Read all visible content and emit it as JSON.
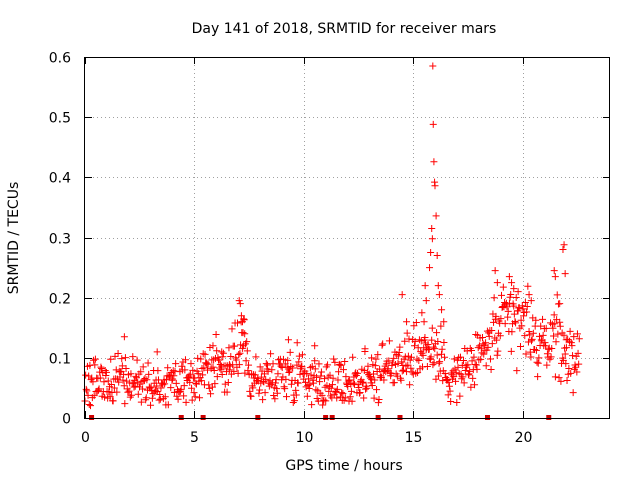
{
  "chart_data": {
    "type": "scatter",
    "title": "Day 141 of 2018, SRMTID for receiver mars",
    "xlabel": "GPS time / hours",
    "ylabel": "SRMTID / TECUs",
    "xlim": [
      0,
      24
    ],
    "ylim": [
      0,
      0.6
    ],
    "x_ticks": [
      0,
      5,
      10,
      15,
      20
    ],
    "y_ticks": [
      0,
      0.1,
      0.2,
      0.3,
      0.4,
      0.5,
      0.6
    ],
    "x_tick_labels": [
      "0",
      "5",
      "10",
      "15",
      "20"
    ],
    "y_tick_labels": [
      "0",
      "0.1",
      "0.2",
      "0.3",
      "0.4",
      "0.5",
      "0.6"
    ],
    "grid": true,
    "marker": "+",
    "series_color": "#ff0000",
    "gap_marker_color": "#cc0000",
    "data_gaps_x": [
      0.3,
      4.4,
      5.4,
      7.9,
      11.0,
      11.3,
      13.4,
      14.4,
      18.4,
      21.2
    ],
    "trend": [
      [
        0.0,
        0.06
      ],
      [
        1.0,
        0.055
      ],
      [
        2.0,
        0.065
      ],
      [
        3.0,
        0.05
      ],
      [
        4.0,
        0.05
      ],
      [
        5.0,
        0.06
      ],
      [
        6.0,
        0.085
      ],
      [
        6.5,
        0.08
      ],
      [
        7.0,
        0.11
      ],
      [
        7.2,
        0.15
      ],
      [
        7.5,
        0.07
      ],
      [
        8.0,
        0.06
      ],
      [
        9.0,
        0.075
      ],
      [
        10.0,
        0.075
      ],
      [
        11.0,
        0.055
      ],
      [
        12.0,
        0.06
      ],
      [
        13.0,
        0.07
      ],
      [
        14.0,
        0.08
      ],
      [
        14.5,
        0.1
      ],
      [
        15.0,
        0.11
      ],
      [
        15.5,
        0.115
      ],
      [
        16.0,
        0.11
      ],
      [
        16.5,
        0.08
      ],
      [
        17.0,
        0.07
      ],
      [
        17.5,
        0.08
      ],
      [
        18.0,
        0.1
      ],
      [
        18.5,
        0.13
      ],
      [
        19.0,
        0.15
      ],
      [
        19.5,
        0.16
      ],
      [
        20.0,
        0.16
      ],
      [
        20.5,
        0.13
      ],
      [
        21.0,
        0.11
      ],
      [
        21.5,
        0.15
      ],
      [
        22.0,
        0.1
      ],
      [
        22.6,
        0.11
      ]
    ],
    "points": [
      [
        5.85,
        0.12
      ],
      [
        6.25,
        0.11
      ],
      [
        6.6,
        0.08
      ],
      [
        7.05,
        0.195
      ],
      [
        7.1,
        0.19
      ],
      [
        7.15,
        0.17
      ],
      [
        7.2,
        0.16
      ],
      [
        7.3,
        0.14
      ],
      [
        7.25,
        0.12
      ],
      [
        15.4,
        0.175
      ],
      [
        15.5,
        0.16
      ],
      [
        15.55,
        0.22
      ],
      [
        15.6,
        0.195
      ],
      [
        15.75,
        0.25
      ],
      [
        15.8,
        0.275
      ],
      [
        15.85,
        0.315
      ],
      [
        15.88,
        0.298
      ],
      [
        15.9,
        0.585
      ],
      [
        15.92,
        0.488
      ],
      [
        15.95,
        0.426
      ],
      [
        15.98,
        0.392
      ],
      [
        16.0,
        0.386
      ],
      [
        16.05,
        0.336
      ],
      [
        16.1,
        0.27
      ],
      [
        16.15,
        0.22
      ],
      [
        16.2,
        0.205
      ],
      [
        16.3,
        0.18
      ],
      [
        16.4,
        0.16
      ],
      [
        18.75,
        0.245
      ],
      [
        18.85,
        0.225
      ],
      [
        19.4,
        0.235
      ],
      [
        19.5,
        0.225
      ],
      [
        19.6,
        0.215
      ],
      [
        19.8,
        0.21
      ],
      [
        20.3,
        0.205
      ],
      [
        20.4,
        0.195
      ],
      [
        21.45,
        0.245
      ],
      [
        21.5,
        0.235
      ],
      [
        21.7,
        0.19
      ],
      [
        21.85,
        0.28
      ],
      [
        21.9,
        0.288
      ],
      [
        21.95,
        0.24
      ],
      [
        22.0,
        0.13
      ],
      [
        14.5,
        0.205
      ],
      [
        14.7,
        0.16
      ],
      [
        9.3,
        0.13
      ],
      [
        9.7,
        0.125
      ],
      [
        10.5,
        0.12
      ],
      [
        1.8,
        0.135
      ],
      [
        3.3,
        0.11
      ],
      [
        12.8,
        0.115
      ],
      [
        13.1,
        0.1
      ]
    ]
  }
}
